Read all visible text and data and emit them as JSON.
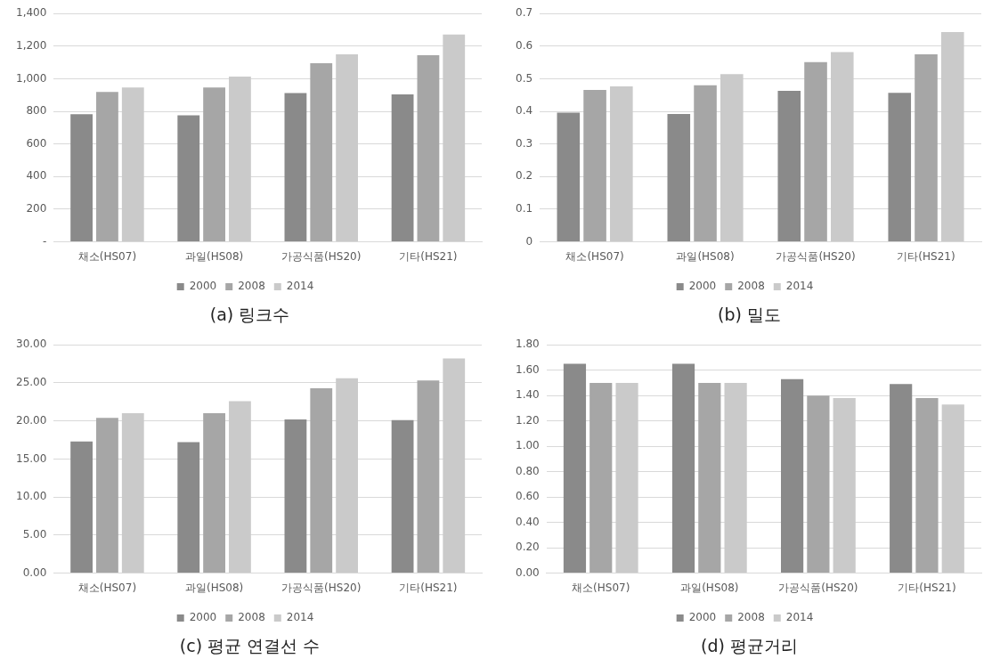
{
  "chart_data": [
    {
      "type": "bar",
      "title": "(a) 링크수",
      "categories": [
        "채소(HS07)",
        "과일(HS08)",
        "가공식품(HS20)",
        "기타(HS21)"
      ],
      "series": [
        {
          "name": "2000",
          "color": "#8a8a8a",
          "values": [
            783,
            776,
            913,
            904
          ]
        },
        {
          "name": "2008",
          "color": "#a6a6a6",
          "values": [
            919,
            946,
            1096,
            1144
          ]
        },
        {
          "name": "2014",
          "color": "#cacaca",
          "values": [
            946,
            1014,
            1150,
            1272
          ]
        }
      ],
      "ylim": [
        0,
        1400
      ],
      "yticks": [
        {
          "value": 0,
          "label": "-"
        },
        {
          "value": 200,
          "label": "200"
        },
        {
          "value": 400,
          "label": "400"
        },
        {
          "value": 600,
          "label": "600"
        },
        {
          "value": 800,
          "label": "800"
        },
        {
          "value": 1000,
          "label": "1,000"
        },
        {
          "value": 1200,
          "label": "1,200"
        },
        {
          "value": 1400,
          "label": "1,400"
        }
      ],
      "grid": "y",
      "legend": "bottom"
    },
    {
      "type": "bar",
      "title": "(b) 밀도",
      "categories": [
        "채소(HS07)",
        "과일(HS08)",
        "가공식품(HS20)",
        "기타(HS21)"
      ],
      "series": [
        {
          "name": "2000",
          "color": "#8a8a8a",
          "values": [
            0.396,
            0.392,
            0.463,
            0.457
          ]
        },
        {
          "name": "2008",
          "color": "#a6a6a6",
          "values": [
            0.466,
            0.48,
            0.551,
            0.575
          ]
        },
        {
          "name": "2014",
          "color": "#cacaca",
          "values": [
            0.477,
            0.514,
            0.582,
            0.643
          ]
        }
      ],
      "ylim": [
        0,
        0.7
      ],
      "yticks": [
        0,
        0.1,
        0.2,
        0.3,
        0.4,
        0.5,
        0.6,
        0.7
      ],
      "grid": "y",
      "legend": "bottom"
    },
    {
      "type": "bar",
      "title": "(c) 평균 연결선 수",
      "categories": [
        "채소(HS07)",
        "과일(HS08)",
        "가공식품(HS20)",
        "기타(HS21)"
      ],
      "series": [
        {
          "name": "2000",
          "color": "#8a8a8a",
          "values": [
            17.3,
            17.2,
            20.2,
            20.1
          ]
        },
        {
          "name": "2008",
          "color": "#a6a6a6",
          "values": [
            20.4,
            21.0,
            24.3,
            25.3
          ]
        },
        {
          "name": "2014",
          "color": "#cacaca",
          "values": [
            21.0,
            22.6,
            25.6,
            28.2
          ]
        }
      ],
      "ylim": [
        0,
        30
      ],
      "yticks": [
        {
          "value": 0,
          "label": "0.00"
        },
        {
          "value": 5,
          "label": "5.00"
        },
        {
          "value": 10,
          "label": "10.00"
        },
        {
          "value": 15,
          "label": "15.00"
        },
        {
          "value": 20,
          "label": "20.00"
        },
        {
          "value": 25,
          "label": "25.00"
        },
        {
          "value": 30,
          "label": "30.00"
        }
      ],
      "grid": "y",
      "legend": "bottom"
    },
    {
      "type": "bar",
      "title": "(d) 평균거리",
      "categories": [
        "채소(HS07)",
        "과일(HS08)",
        "가공식품(HS20)",
        "기타(HS21)"
      ],
      "series": [
        {
          "name": "2000",
          "color": "#8a8a8a",
          "values": [
            1.65,
            1.65,
            1.53,
            1.49
          ]
        },
        {
          "name": "2008",
          "color": "#a6a6a6",
          "values": [
            1.5,
            1.5,
            1.4,
            1.38
          ]
        },
        {
          "name": "2014",
          "color": "#cacaca",
          "values": [
            1.5,
            1.5,
            1.38,
            1.33
          ]
        }
      ],
      "ylim": [
        0,
        1.8
      ],
      "yticks": [
        {
          "value": 0,
          "label": "0.00"
        },
        {
          "value": 0.2,
          "label": "0.20"
        },
        {
          "value": 0.4,
          "label": "0.40"
        },
        {
          "value": 0.6,
          "label": "0.60"
        },
        {
          "value": 0.8,
          "label": "0.80"
        },
        {
          "value": 1,
          "label": "1.00"
        },
        {
          "value": 1.2,
          "label": "1.20"
        },
        {
          "value": 1.4,
          "label": "1.40"
        },
        {
          "value": 1.6,
          "label": "1.60"
        },
        {
          "value": 1.8,
          "label": "1.80"
        }
      ],
      "grid": "y",
      "legend": "bottom"
    }
  ]
}
